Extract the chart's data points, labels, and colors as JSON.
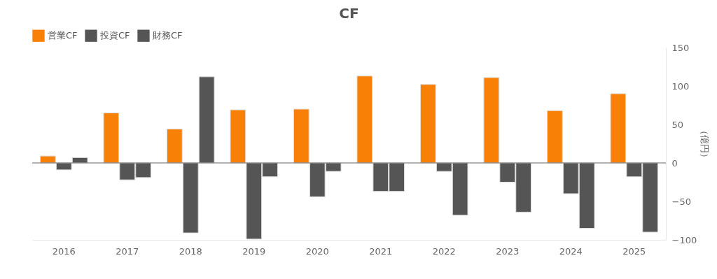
{
  "chart_data": {
    "type": "bar",
    "title": "CF",
    "ylabel": "（億円）",
    "categories": [
      "2016",
      "2017",
      "2018",
      "2019",
      "2020",
      "2021",
      "2022",
      "2023",
      "2024",
      "2025"
    ],
    "series": [
      {
        "name": "営業CF",
        "color": "#f98007",
        "values": [
          9,
          65,
          44,
          69,
          70,
          113,
          102,
          111,
          68,
          90
        ]
      },
      {
        "name": "投資CF",
        "color": "#555555",
        "values": [
          -9,
          -22,
          -91,
          -99,
          -44,
          -37,
          -11,
          -25,
          -40,
          -18
        ]
      },
      {
        "name": "財務CF",
        "color": "#555555",
        "values": [
          7,
          -19,
          112,
          -18,
          -11,
          -37,
          -68,
          -64,
          -85,
          -90
        ]
      }
    ],
    "ylim": [
      -100,
      150
    ],
    "yticks": [
      -100,
      -50,
      0,
      50,
      100,
      150
    ],
    "ref_lines": [
      {
        "axis": "y",
        "value": 0
      }
    ],
    "grid": false,
    "legend": "top"
  }
}
